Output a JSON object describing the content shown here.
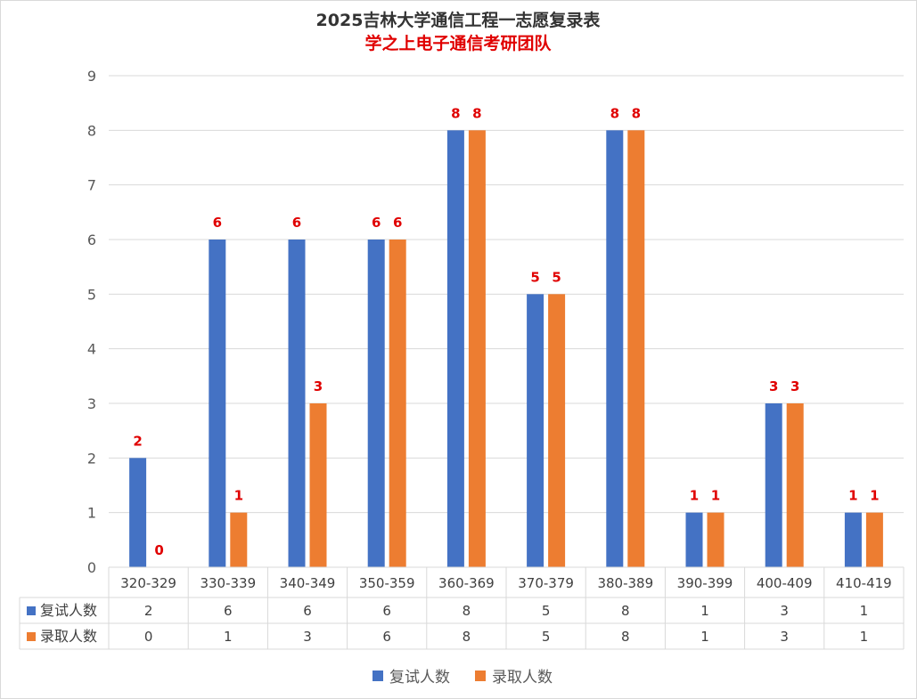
{
  "chart_data": {
    "type": "bar",
    "title": "2025吉林大学通信工程一志愿复录表",
    "subtitle": "学之上电子通信考研团队",
    "categories": [
      "320-329",
      "330-339",
      "340-349",
      "350-359",
      "360-369",
      "370-379",
      "380-389",
      "390-399",
      "400-409",
      "410-419"
    ],
    "series": [
      {
        "name": "复试人数",
        "color": "#4472C4",
        "values": [
          2,
          6,
          6,
          6,
          8,
          5,
          8,
          1,
          3,
          1
        ]
      },
      {
        "name": "录取人数",
        "color": "#ED7D31",
        "values": [
          0,
          1,
          3,
          6,
          8,
          5,
          8,
          1,
          3,
          1
        ]
      }
    ],
    "ylim": [
      0,
      9
    ],
    "yticks": [
      0,
      1,
      2,
      3,
      4,
      5,
      6,
      7,
      8,
      9
    ],
    "grid": true,
    "data_label_color": "#E00000",
    "data_table": true,
    "legend_placement": "bottom-center"
  }
}
